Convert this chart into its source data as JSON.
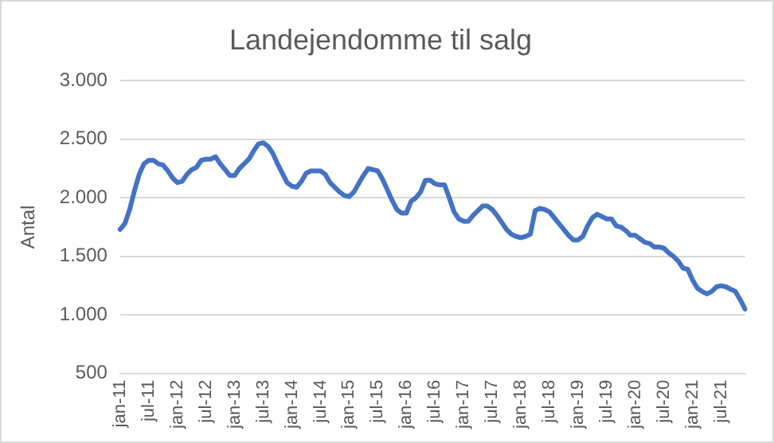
{
  "chart_data": {
    "type": "line",
    "title": "Landejendomme til salg",
    "ylabel": "Antal",
    "categories": [
      "jan-11",
      null,
      null,
      null,
      null,
      null,
      "jul-11",
      null,
      null,
      null,
      null,
      null,
      "jan-12",
      null,
      null,
      null,
      null,
      null,
      "jul-12",
      null,
      null,
      null,
      null,
      null,
      "jan-13",
      null,
      null,
      null,
      null,
      null,
      "jul-13",
      null,
      null,
      null,
      null,
      null,
      "jan-14",
      null,
      null,
      null,
      null,
      null,
      "jul-14",
      null,
      null,
      null,
      null,
      null,
      "jan-15",
      null,
      null,
      null,
      null,
      null,
      "jul-15",
      null,
      null,
      null,
      null,
      null,
      "jan-16",
      null,
      null,
      null,
      null,
      null,
      "jul-16",
      null,
      null,
      null,
      null,
      null,
      "jan-17",
      null,
      null,
      null,
      null,
      null,
      "jul-17",
      null,
      null,
      null,
      null,
      null,
      "jan-18",
      null,
      null,
      null,
      null,
      null,
      "jul-18",
      null,
      null,
      null,
      null,
      null,
      "jan-19",
      null,
      null,
      null,
      null,
      null,
      "jul-19",
      null,
      null,
      null,
      null,
      null,
      "jan-20",
      null,
      null,
      null,
      null,
      null,
      "jul-20",
      null,
      null,
      null,
      null,
      null,
      "jan-21",
      null,
      null,
      null,
      null,
      null,
      "jul-21",
      null,
      null,
      null,
      null,
      null
    ],
    "series": [
      {
        "color": "#4472c4",
        "values": [
          1730,
          1780,
          1900,
          2060,
          2200,
          2290,
          2320,
          2320,
          2290,
          2280,
          2230,
          2170,
          2130,
          2140,
          2200,
          2240,
          2260,
          2320,
          2330,
          2330,
          2350,
          2290,
          2240,
          2190,
          2190,
          2250,
          2290,
          2330,
          2400,
          2460,
          2470,
          2440,
          2380,
          2290,
          2210,
          2130,
          2100,
          2090,
          2140,
          2210,
          2230,
          2230,
          2230,
          2200,
          2130,
          2090,
          2050,
          2020,
          2010,
          2050,
          2120,
          2190,
          2250,
          2240,
          2230,
          2160,
          2070,
          1980,
          1900,
          1870,
          1870,
          1970,
          2000,
          2050,
          2150,
          2150,
          2120,
          2110,
          2110,
          2000,
          1880,
          1820,
          1800,
          1800,
          1850,
          1890,
          1930,
          1930,
          1900,
          1850,
          1790,
          1730,
          1690,
          1670,
          1660,
          1670,
          1690,
          1890,
          1910,
          1900,
          1880,
          1830,
          1780,
          1730,
          1680,
          1640,
          1640,
          1670,
          1760,
          1830,
          1860,
          1840,
          1820,
          1820,
          1760,
          1750,
          1720,
          1680,
          1680,
          1650,
          1620,
          1610,
          1580,
          1580,
          1570,
          1530,
          1500,
          1460,
          1400,
          1390,
          1300,
          1230,
          1200,
          1180,
          1200,
          1240,
          1250,
          1240,
          1220,
          1200,
          1130,
          1050
        ]
      }
    ],
    "ylim": [
      500,
      3000
    ],
    "yticks": [
      {
        "value": 500,
        "label": "500"
      },
      {
        "value": 1000,
        "label": "1.000"
      },
      {
        "value": 1500,
        "label": "1.500"
      },
      {
        "value": 2000,
        "label": "2.000"
      },
      {
        "value": 2500,
        "label": "2.500"
      },
      {
        "value": 3000,
        "label": "3.000"
      }
    ],
    "grid": "y",
    "marker": "none",
    "line_style": "solid"
  }
}
